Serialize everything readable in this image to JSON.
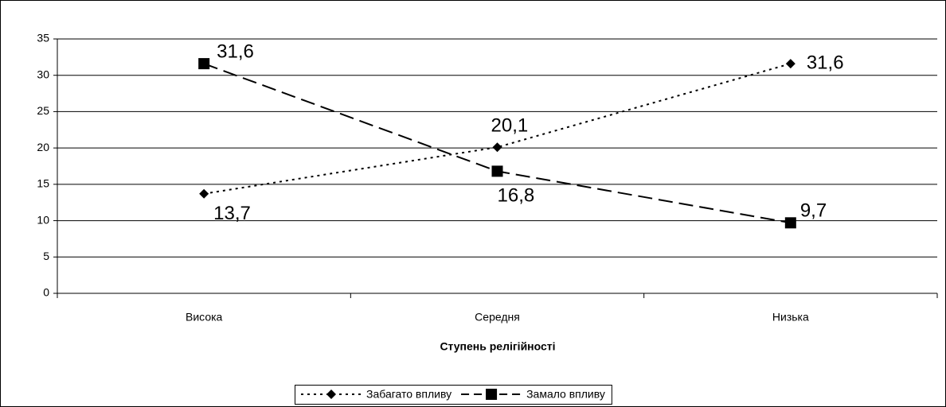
{
  "chart_data": {
    "type": "line",
    "x_label": "Ступень релігійності",
    "categories": [
      "Висока",
      "Середня",
      "Низька"
    ],
    "series": [
      {
        "name": "Забагато впливу",
        "color": "#000000",
        "marker": "diamond",
        "dash": "dotted",
        "values": [
          13.7,
          20.1,
          31.6
        ],
        "value_labels": [
          "13,7",
          "20,1",
          "31,6"
        ]
      },
      {
        "name": "Замало впливу",
        "color": "#000000",
        "marker": "square",
        "dash": "dashed",
        "values": [
          31.6,
          16.8,
          9.7
        ],
        "value_labels": [
          "31,6",
          "16,8",
          "9,7"
        ]
      }
    ],
    "ylim": [
      0,
      35
    ],
    "yticks": [
      0,
      5,
      10,
      15,
      20,
      25,
      30,
      35
    ],
    "grid": true,
    "legend": "bottom"
  }
}
